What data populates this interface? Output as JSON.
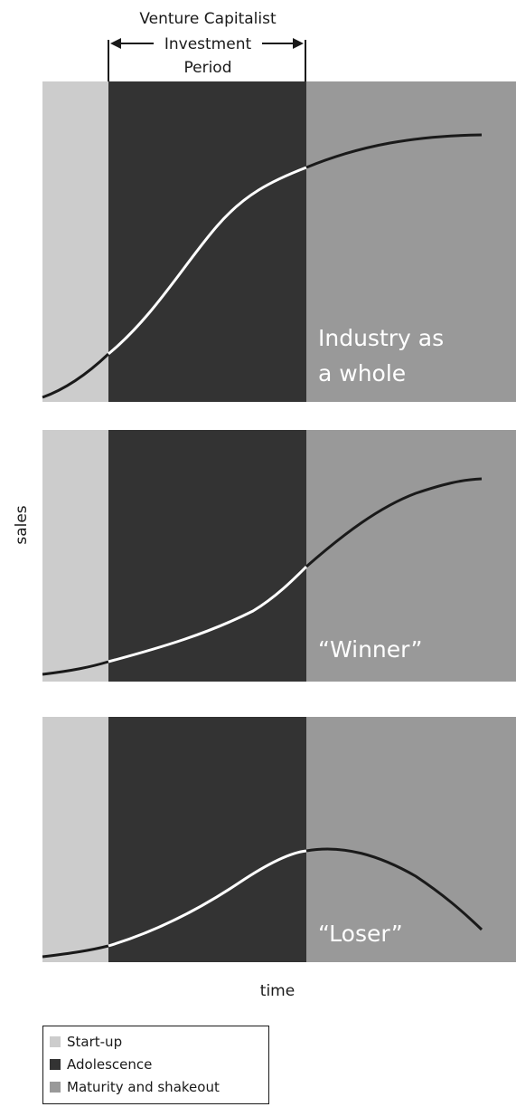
{
  "header": {
    "line1": "Venture Capitalist",
    "line2": "Investment",
    "line3": "Period"
  },
  "axes": {
    "ylabel": "sales",
    "xlabel": "time"
  },
  "colors": {
    "startup": "#cccccc",
    "adolescence": "#333333",
    "maturity": "#999999"
  },
  "panels": [
    {
      "label_line1": "Industry as",
      "label_line2": "a whole"
    },
    {
      "label_line1": "“Winner”",
      "label_line2": ""
    },
    {
      "label_line1": "“Loser”",
      "label_line2": ""
    }
  ],
  "legend": {
    "items": [
      {
        "label": "Start-up",
        "color": "#cccccc"
      },
      {
        "label": "Adolescence",
        "color": "#333333"
      },
      {
        "label": "Maturity and shakeout",
        "color": "#999999"
      }
    ]
  }
}
